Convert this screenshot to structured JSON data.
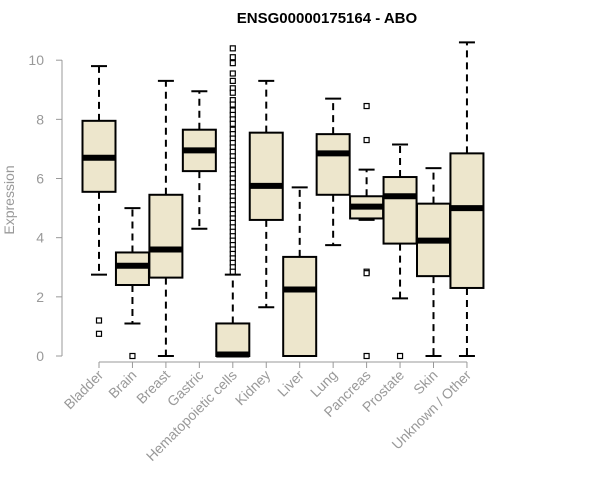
{
  "chart_data": {
    "type": "boxplot",
    "title": "ENSG00000175164 - ABO",
    "xlabel": "",
    "ylabel": "Expression",
    "ylim": [
      0,
      10.5
    ],
    "yticks": [
      "0",
      "2",
      "4",
      "6",
      "8",
      "10"
    ],
    "box_color": "#ede6cc",
    "axis_color": "#999999",
    "categories": [
      "Bladder",
      "Brain",
      "Breast",
      "Gastric",
      "Hematopoietic cells",
      "Kidney",
      "Liver",
      "Lung",
      "Pancreas",
      "Prostate",
      "Skin",
      "Unknown / Other"
    ],
    "boxes": [
      {
        "min": 2.75,
        "q1": 5.55,
        "median": 6.7,
        "q3": 7.95,
        "max": 9.8,
        "outliers": [
          1.2,
          0.75
        ]
      },
      {
        "min": 1.1,
        "q1": 2.4,
        "median": 3.05,
        "q3": 3.5,
        "max": 5.0,
        "outliers": [
          0.0
        ]
      },
      {
        "min": 0.0,
        "q1": 2.65,
        "median": 3.6,
        "q3": 5.45,
        "max": 9.3,
        "outliers": []
      },
      {
        "min": 4.3,
        "q1": 6.25,
        "median": 6.95,
        "q3": 7.65,
        "max": 8.95,
        "outliers": []
      },
      {
        "min": 0.0,
        "q1": 0.0,
        "median": 0.05,
        "q3": 1.1,
        "max": 2.75,
        "outliers": [
          10.4,
          10.1,
          9.9,
          9.55,
          9.3,
          9.05,
          8.9,
          8.65,
          8.5,
          8.3,
          8.15,
          8.0,
          7.85,
          7.65,
          7.5,
          7.35,
          7.2,
          7.05,
          6.9,
          6.75,
          6.6,
          6.45,
          6.3,
          6.15,
          6.0,
          5.85,
          5.7,
          5.55,
          5.4,
          5.25,
          5.1,
          4.95,
          4.8,
          4.65,
          4.5,
          4.35,
          4.2,
          4.05,
          3.9,
          3.75,
          3.6,
          3.45,
          3.3,
          3.15,
          3.0,
          2.85
        ]
      },
      {
        "min": 1.65,
        "q1": 4.6,
        "median": 5.75,
        "q3": 7.55,
        "max": 9.3,
        "outliers": []
      },
      {
        "min": 0.0,
        "q1": 0.0,
        "median": 2.25,
        "q3": 3.35,
        "max": 5.7,
        "outliers": []
      },
      {
        "min": 3.75,
        "q1": 5.45,
        "median": 6.85,
        "q3": 7.5,
        "max": 8.7,
        "outliers": []
      },
      {
        "min": 4.6,
        "q1": 4.65,
        "median": 5.05,
        "q3": 5.4,
        "max": 6.3,
        "outliers": [
          8.45,
          7.3,
          2.85,
          2.8,
          0.0
        ]
      },
      {
        "min": 1.95,
        "q1": 3.8,
        "median": 5.4,
        "q3": 6.05,
        "max": 7.15,
        "outliers": [
          0.0
        ]
      },
      {
        "min": 0.0,
        "q1": 2.7,
        "median": 3.9,
        "q3": 5.15,
        "max": 6.35,
        "outliers": []
      },
      {
        "min": 0.0,
        "q1": 2.3,
        "median": 5.0,
        "q3": 6.85,
        "max": 10.6,
        "outliers": []
      }
    ]
  }
}
